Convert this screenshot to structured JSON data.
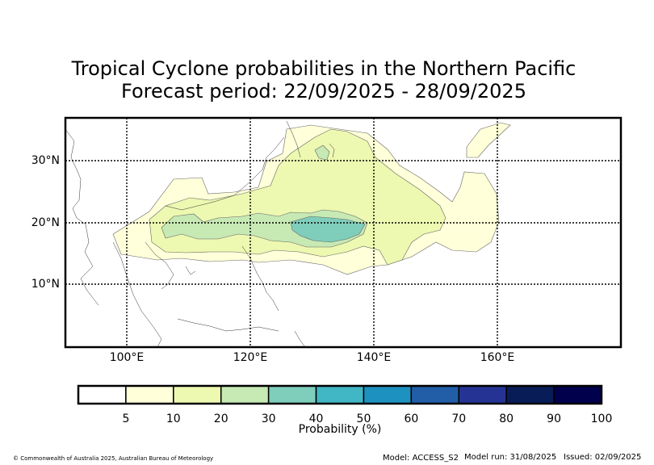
{
  "title_line1": "Tropical Cyclone probabilities in the Northern Pacific",
  "title_line2": "Forecast period: 22/09/2025 - 28/09/2025",
  "lat_labels": [
    "30°N",
    "20°N",
    "10°N"
  ],
  "lon_labels": [
    "100°E",
    "120°E",
    "140°E",
    "160°E"
  ],
  "colorbar": {
    "tick_labels": [
      "5",
      "10",
      "20",
      "30",
      "40",
      "50",
      "60",
      "70",
      "80",
      "90",
      "100"
    ],
    "label": "Probability (%)",
    "colors": [
      "#ffffff",
      "#ffffd9",
      "#edf8b1",
      "#c7e9b4",
      "#7fcdbb",
      "#41b6c4",
      "#1d91c0",
      "#225ea8",
      "#253494",
      "#081d58",
      "#00004d"
    ]
  },
  "footer": {
    "copyright": "© Commonwealth of Australia 2025, Australian Bureau of Meteorology",
    "model": "Model: ACCESS_S2",
    "model_run": "Model run: 31/08/2025",
    "issued": "Issued: 02/09/2025"
  }
}
